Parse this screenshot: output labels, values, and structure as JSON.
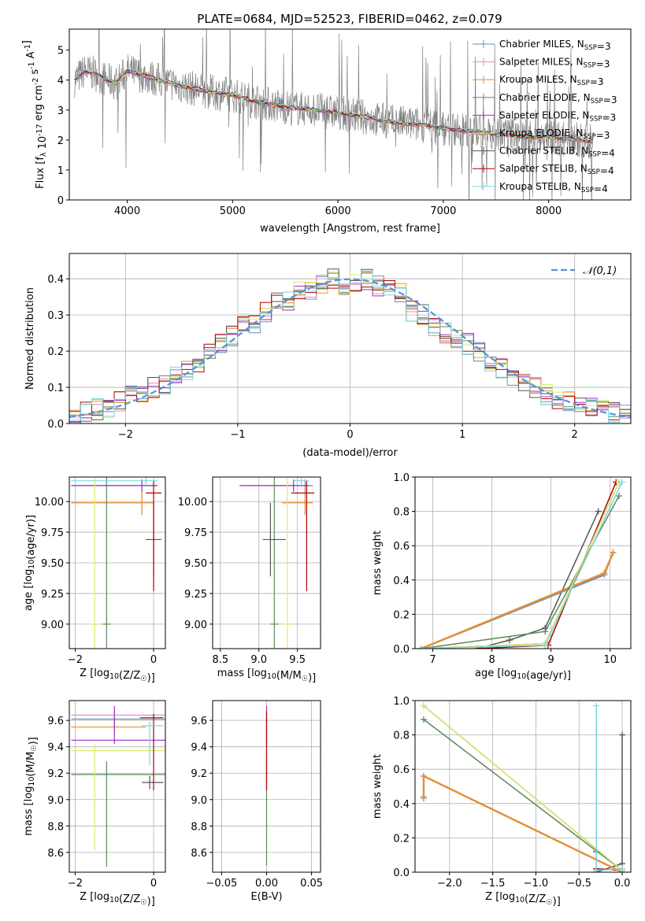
{
  "figure_title": "PLATE=0684, MJD=52523, FIBERID=0462, z=0.079",
  "colors": {
    "Chabrier MILES": "#6c8ebf",
    "Salpeter MILES": "#e68ab8",
    "Kroupa MILES": "#e8902a",
    "Chabrier ELODIE": "#5a8a5a",
    "Salpeter ELODIE": "#9b30c0",
    "Kroupa ELODIE": "#d8f060",
    "Chabrier STELIB": "#555555",
    "Salpeter STELIB": "#b00000",
    "Kroupa STELIB": "#7ad8e0",
    "data": "#808080",
    "normal_curve": "#5a8fd8"
  },
  "chart_data": [
    {
      "type": "line",
      "xlabel": "wavelength [Angstrom, rest frame]",
      "ylabel": "Flux [f_λ 10^-17 erg cm^-2 s^-1 A^-1]",
      "xlim": [
        3450,
        8780
      ],
      "ylim": [
        0,
        5.7
      ],
      "xticks": [
        4000,
        5000,
        6000,
        7000,
        8000
      ],
      "yticks": [
        0,
        1,
        2,
        3,
        4,
        5
      ],
      "grid": false,
      "legend_position": "top-right",
      "legend": [
        "Chabrier MILES, N_SSP=3",
        "Salpeter MILES, N_SSP=3",
        "Kroupa MILES, N_SSP=3",
        "Chabrier ELODIE, N_SSP=3",
        "Salpeter ELODIE, N_SSP=3",
        "Kroupa ELODIE, N_SSP=3",
        "Chabrier STELIB, N_SSP=4",
        "Salpeter STELIB, N_SSP=4",
        "Kroupa STELIB, N_SSP=4"
      ],
      "model_continuum": {
        "x": [
          3500,
          3600,
          3700,
          3800,
          3900,
          4000,
          4200,
          4500,
          4800,
          5000,
          5200,
          5500,
          5800,
          6000,
          6200,
          6500,
          6800,
          7000,
          7200,
          7500,
          7800,
          8000,
          8300,
          8500
        ],
        "y": [
          4.0,
          4.3,
          4.2,
          4.0,
          3.9,
          4.3,
          4.1,
          3.8,
          3.6,
          3.5,
          3.3,
          3.1,
          3.0,
          2.9,
          2.8,
          2.6,
          2.5,
          2.4,
          2.3,
          2.2,
          2.1,
          2.1,
          2.0,
          1.9
        ]
      }
    },
    {
      "type": "line",
      "xlabel": "(data-model)/error",
      "ylabel": "Normed distribution",
      "xlim": [
        -2.5,
        2.5
      ],
      "ylim": [
        0,
        0.47
      ],
      "xticks": [
        -2,
        -1,
        0,
        1,
        2
      ],
      "yticks": [
        0.0,
        0.1,
        0.2,
        0.3,
        0.4
      ],
      "grid": true,
      "legend_position": "top-right",
      "legend": [
        "𝒩(0,1)"
      ],
      "histogram_bins": {
        "edges_start": -2.5,
        "bin_width": 0.1,
        "values": [
          0.03,
          0.03,
          0.04,
          0.04,
          0.06,
          0.08,
          0.09,
          0.1,
          0.11,
          0.13,
          0.15,
          0.17,
          0.2,
          0.22,
          0.24,
          0.28,
          0.28,
          0.31,
          0.34,
          0.34,
          0.37,
          0.37,
          0.39,
          0.4,
          0.38,
          0.39,
          0.4,
          0.38,
          0.38,
          0.36,
          0.31,
          0.3,
          0.27,
          0.25,
          0.23,
          0.22,
          0.2,
          0.17,
          0.15,
          0.13,
          0.12,
          0.1,
          0.08,
          0.07,
          0.06,
          0.05,
          0.04,
          0.04,
          0.03,
          0.03
        ]
      }
    },
    {
      "type": "scatter",
      "xlabel": "Z [log10(Z/Z☉)]",
      "ylabel": "age  [log10(age/yr)]",
      "xlim": [
        -2.15,
        0.3
      ],
      "ylim": [
        8.8,
        10.2
      ],
      "xticks": [
        -2,
        0
      ],
      "yticks": [
        9.0,
        9.25,
        9.5,
        9.75,
        10.0
      ],
      "grid": true,
      "errorbars": [
        {
          "series": "Chabrier MILES",
          "x": -0.3,
          "y": 10.13,
          "x_err": [
            1.8,
            0.4
          ],
          "y_err": [
            0.05,
            0.05
          ]
        },
        {
          "series": "Salpeter MILES",
          "x": -0.3,
          "y": 9.99,
          "x_err": [
            1.8,
            0.3
          ],
          "y_err": [
            0.1,
            0.1
          ]
        },
        {
          "series": "Kroupa MILES",
          "x": -0.3,
          "y": 9.99,
          "x_err": [
            1.8,
            0.3
          ],
          "y_err": [
            0.1,
            0.1
          ]
        },
        {
          "series": "Chabrier ELODIE",
          "x": -1.2,
          "y": 9.0,
          "x_err": [
            0.1,
            0.1
          ],
          "y_err": [
            0.2,
            1.2
          ]
        },
        {
          "series": "Salpeter ELODIE",
          "x": -0.3,
          "y": 10.13,
          "x_err": [
            1.8,
            0.4
          ],
          "y_err": [
            0.05,
            0.05
          ]
        },
        {
          "series": "Kroupa ELODIE",
          "x": -1.5,
          "y": 9.0,
          "x_err": [
            0.1,
            0.1
          ],
          "y_err": [
            0.2,
            1.2
          ]
        },
        {
          "series": "Chabrier STELIB",
          "x": 0.0,
          "y": 9.69,
          "x_err": [
            0.2,
            0.2
          ],
          "y_err": [
            0.3,
            0.3
          ]
        },
        {
          "series": "Salpeter STELIB",
          "x": 0.0,
          "y": 10.07,
          "x_err": [
            0.2,
            0.2
          ],
          "y_err": [
            0.8,
            0.1
          ]
        },
        {
          "series": "Kroupa STELIB",
          "x": -0.2,
          "y": 10.17,
          "x_err": [
            1.9,
            0.3
          ],
          "y_err": [
            0.03,
            0.03
          ]
        }
      ]
    },
    {
      "type": "scatter",
      "xlabel": "mass [log10(M/M☉)]",
      "ylabel": "",
      "xlim": [
        8.4,
        9.8
      ],
      "ylim": [
        8.8,
        10.2
      ],
      "xticks": [
        8.5,
        9.0,
        9.5
      ],
      "yticks": [
        9.0,
        9.25,
        9.5,
        9.75,
        10.0
      ],
      "grid": true,
      "errorbars": [
        {
          "series": "Chabrier MILES",
          "x": 9.6,
          "y": 10.13,
          "x_err": [
            0.8,
            0.1
          ],
          "y_err": [
            0.05,
            0.05
          ]
        },
        {
          "series": "Salpeter MILES",
          "x": 9.6,
          "y": 9.99,
          "x_err": [
            0.3,
            0.1
          ],
          "y_err": [
            0.1,
            0.1
          ]
        },
        {
          "series": "Kroupa MILES",
          "x": 9.6,
          "y": 9.99,
          "x_err": [
            0.3,
            0.1
          ],
          "y_err": [
            0.1,
            0.1
          ]
        },
        {
          "series": "Chabrier ELODIE",
          "x": 9.2,
          "y": 9.0,
          "x_err": [
            0.05,
            0.05
          ],
          "y_err": [
            0.2,
            1.2
          ]
        },
        {
          "series": "Salpeter ELODIE",
          "x": 9.45,
          "y": 10.13,
          "x_err": [
            0.7,
            0.2
          ],
          "y_err": [
            0.05,
            0.05
          ]
        },
        {
          "series": "Kroupa ELODIE",
          "x": 9.37,
          "y": 9.0,
          "x_err": [
            0.05,
            0.05
          ],
          "y_err": [
            0.2,
            1.2
          ]
        },
        {
          "series": "Chabrier STELIB",
          "x": 9.15,
          "y": 9.69,
          "x_err": [
            0.1,
            0.2
          ],
          "y_err": [
            0.3,
            0.3
          ]
        },
        {
          "series": "Salpeter STELIB",
          "x": 9.62,
          "y": 10.07,
          "x_err": [
            0.2,
            0.1
          ],
          "y_err": [
            0.8,
            0.1
          ]
        },
        {
          "series": "Kroupa STELIB",
          "x": 9.55,
          "y": 10.17,
          "x_err": [
            0.1,
            0.1
          ],
          "y_err": [
            0.03,
            0.03
          ]
        }
      ]
    },
    {
      "type": "line",
      "xlabel": "age  [log10(age/yr)]",
      "ylabel": "mass weight",
      "xlim": [
        6.7,
        10.35
      ],
      "ylim": [
        0,
        1.0
      ],
      "xticks": [
        7,
        8,
        9,
        10
      ],
      "yticks": [
        0.0,
        0.2,
        0.4,
        0.6,
        0.8,
        1.0
      ],
      "grid": true,
      "series": [
        {
          "name": "Chabrier MILES",
          "x": [
            6.8,
            9.9,
            10.05
          ],
          "y": [
            0.0,
            0.43,
            0.56
          ]
        },
        {
          "name": "Salpeter MILES",
          "x": [
            6.8,
            9.9,
            10.05
          ],
          "y": [
            0.0,
            0.44,
            0.56
          ]
        },
        {
          "name": "Kroupa MILES",
          "x": [
            6.8,
            9.9,
            10.05
          ],
          "y": [
            0.0,
            0.44,
            0.56
          ]
        },
        {
          "name": "Chabrier ELODIE",
          "x": [
            6.8,
            8.9,
            10.15
          ],
          "y": [
            0.0,
            0.1,
            0.89
          ]
        },
        {
          "name": "Salpeter ELODIE",
          "x": [
            6.8,
            8.9,
            10.15
          ],
          "y": [
            0.0,
            0.03,
            0.97
          ]
        },
        {
          "name": "Kroupa ELODIE",
          "x": [
            6.8,
            8.9,
            10.15
          ],
          "y": [
            0.0,
            0.03,
            0.97
          ]
        },
        {
          "name": "Chabrier STELIB",
          "x": [
            7.75,
            8.3,
            8.9,
            9.8
          ],
          "y": [
            0.0,
            0.05,
            0.12,
            0.8
          ]
        },
        {
          "name": "Salpeter STELIB",
          "x": [
            7.75,
            8.95,
            10.1
          ],
          "y": [
            0.0,
            0.02,
            0.97
          ]
        },
        {
          "name": "Kroupa STELIB",
          "x": [
            6.8,
            8.9,
            10.2
          ],
          "y": [
            0.0,
            0.02,
            0.97
          ]
        }
      ]
    },
    {
      "type": "scatter",
      "xlabel": "Z [log10(Z/Z☉)]",
      "ylabel": "mass [log10(M/M☉)]",
      "xlim": [
        -2.15,
        0.3
      ],
      "ylim": [
        8.45,
        9.75
      ],
      "xticks": [
        -2,
        0
      ],
      "yticks": [
        8.6,
        8.8,
        9.0,
        9.2,
        9.4,
        9.6
      ],
      "grid": true,
      "errorbars": [
        {
          "series": "Chabrier MILES",
          "x": -1.0,
          "y": 9.61,
          "x_err": [
            1.1,
            1.3
          ],
          "y_err": [
            0.03,
            0.03
          ]
        },
        {
          "series": "Salpeter MILES",
          "x": -1.0,
          "y": 9.64,
          "x_err": [
            1.1,
            1.3
          ],
          "y_err": [
            0.08,
            0.03
          ]
        },
        {
          "series": "Kroupa MILES",
          "x": -1.0,
          "y": 9.55,
          "x_err": [
            1.1,
            0.8
          ],
          "y_err": [
            0.03,
            0.03
          ]
        },
        {
          "series": "Chabrier ELODIE",
          "x": -1.2,
          "y": 9.19,
          "x_err": [
            0.9,
            1.5
          ],
          "y_err": [
            0.7,
            0.1
          ]
        },
        {
          "series": "Salpeter ELODIE",
          "x": -1.0,
          "y": 9.45,
          "x_err": [
            1.1,
            1.3
          ],
          "y_err": [
            0.03,
            0.26
          ]
        },
        {
          "series": "Kroupa ELODIE",
          "x": -1.5,
          "y": 9.37,
          "x_err": [
            0.6,
            1.8
          ],
          "y_err": [
            0.75,
            0.05
          ]
        },
        {
          "series": "Chabrier STELIB",
          "x": -0.1,
          "y": 9.13,
          "x_err": [
            0.2,
            0.35
          ],
          "y_err": [
            0.05,
            0.05
          ]
        },
        {
          "series": "Salpeter STELIB",
          "x": 0.0,
          "y": 9.62,
          "x_err": [
            0.35,
            0.25
          ],
          "y_err": [
            0.55,
            0.03
          ]
        },
        {
          "series": "Kroupa STELIB",
          "x": -0.1,
          "y": 9.56,
          "x_err": [
            0.2,
            0.35
          ],
          "y_err": [
            0.3,
            0.03
          ]
        }
      ]
    },
    {
      "type": "scatter",
      "xlabel": "E(B-V)",
      "ylabel": "",
      "xlim": [
        -0.06,
        0.06
      ],
      "ylim": [
        8.45,
        9.75
      ],
      "xticks": [
        -0.05,
        0.0,
        0.05
      ],
      "yticks": [
        8.6,
        8.8,
        9.0,
        9.2,
        9.4,
        9.6
      ],
      "grid": true,
      "errorbars": [
        {
          "series": "Chabrier ELODIE",
          "x": 0.0,
          "y": 9.2,
          "x_err": [
            0,
            0
          ],
          "y_err": [
            0.7,
            0.1
          ]
        },
        {
          "series": "Salpeter ELODIE",
          "x": 0.0,
          "y": 9.45,
          "x_err": [
            0,
            0
          ],
          "y_err": [
            0.05,
            0.26
          ]
        },
        {
          "series": "Salpeter STELIB",
          "x": 0.0,
          "y": 9.62,
          "x_err": [
            0,
            0
          ],
          "y_err": [
            0.55,
            0.05
          ]
        }
      ]
    },
    {
      "type": "line",
      "xlabel": "Z [log10(Z/Z☉)]",
      "ylabel": "mass weight",
      "xlim": [
        -2.4,
        0.1
      ],
      "ylim": [
        0,
        1.0
      ],
      "xticks": [
        -2.0,
        -1.5,
        -1.0,
        -0.5,
        0.0
      ],
      "yticks": [
        0.0,
        0.2,
        0.4,
        0.6,
        0.8,
        1.0
      ],
      "grid": true,
      "series": [
        {
          "name": "Chabrier MILES",
          "x": [
            -2.3,
            -2.3,
            0.0
          ],
          "y": [
            0.43,
            0.56,
            0.0
          ]
        },
        {
          "name": "Salpeter MILES",
          "x": [
            -2.3,
            -2.3,
            0.0
          ],
          "y": [
            0.44,
            0.56,
            0.0
          ]
        },
        {
          "name": "Kroupa MILES",
          "x": [
            -2.3,
            -2.3,
            0.0
          ],
          "y": [
            0.44,
            0.56,
            0.0
          ]
        },
        {
          "name": "Chabrier ELODIE",
          "x": [
            -2.3,
            0.0
          ],
          "y": [
            0.89,
            0.01
          ]
        },
        {
          "name": "Salpeter ELODIE",
          "x": [
            -2.3,
            0.0
          ],
          "y": [
            0.97,
            0.01
          ]
        },
        {
          "name": "Kroupa ELODIE",
          "x": [
            -2.3,
            0.0
          ],
          "y": [
            0.97,
            0.01
          ]
        },
        {
          "name": "Chabrier STELIB",
          "x": [
            -0.3,
            -0.3,
            0.0,
            0.0
          ],
          "y": [
            0.12,
            0.0,
            0.05,
            0.8
          ]
        },
        {
          "name": "Salpeter STELIB",
          "x": [
            -0.3,
            0.0
          ],
          "y": [
            0.02,
            0.01
          ]
        },
        {
          "name": "Kroupa STELIB",
          "x": [
            -0.3,
            -0.3,
            0.0
          ],
          "y": [
            0.97,
            0.01,
            0.02
          ]
        }
      ]
    }
  ]
}
